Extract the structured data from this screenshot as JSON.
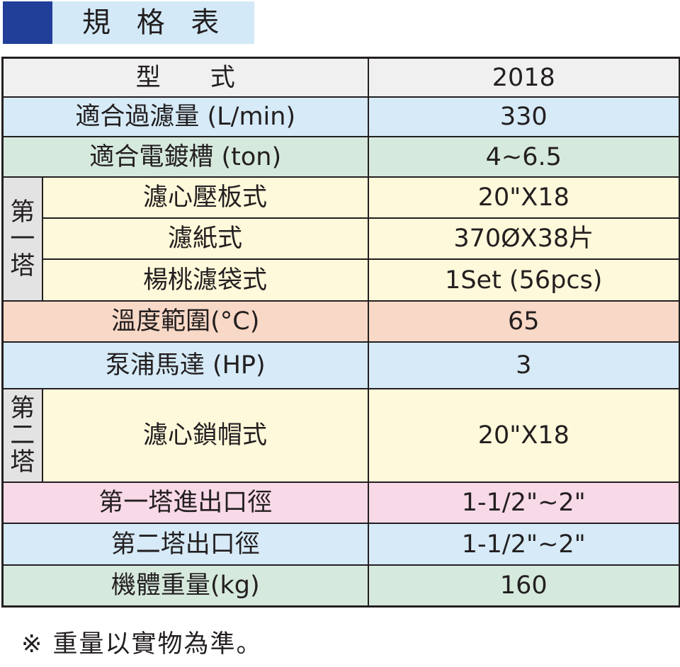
{
  "title": "規 格 表",
  "rows": [
    {
      "label": "型　　式",
      "value": "2018"
    },
    {
      "label": "適合過濾量 (L/min)",
      "value": "330"
    },
    {
      "label": "適合電鍍槽 (ton)",
      "value": "4~6.5"
    },
    {
      "label": "濾心壓板式",
      "value": "20\"X18"
    },
    {
      "label": "濾紙式",
      "value": "370ØX38片"
    },
    {
      "label": "楊桃濾袋式",
      "value": "1Set (56pcs)"
    },
    {
      "label": "溫度範圍(°C)",
      "value": "65"
    },
    {
      "label": "泵浦馬達 (HP)",
      "value": "3"
    },
    {
      "label": "濾心鎖帽式",
      "value": "20\"X18"
    },
    {
      "label": "第一塔進出口徑",
      "value": "1-1/2\"~2\""
    },
    {
      "label": "第二塔出口徑",
      "value": "1-1/2\"~2\""
    },
    {
      "label": "機體重量(kg)",
      "value": "160"
    }
  ],
  "groups": {
    "tower1": [
      "第",
      "一",
      "塔"
    ],
    "tower2": [
      "第",
      "二",
      "塔"
    ]
  },
  "note": "※ 重量以實物為準。",
  "colors": {
    "title_block": "#213e98",
    "title_bg": "#d3e9f7",
    "blue_row": "#d6eaf7",
    "green_row": "#d6e9dd",
    "cream_row": "#fef9da",
    "peach_row": "#f8d8c6",
    "pink_row": "#f8d9e8",
    "group_cell": "#e3e3e3"
  }
}
